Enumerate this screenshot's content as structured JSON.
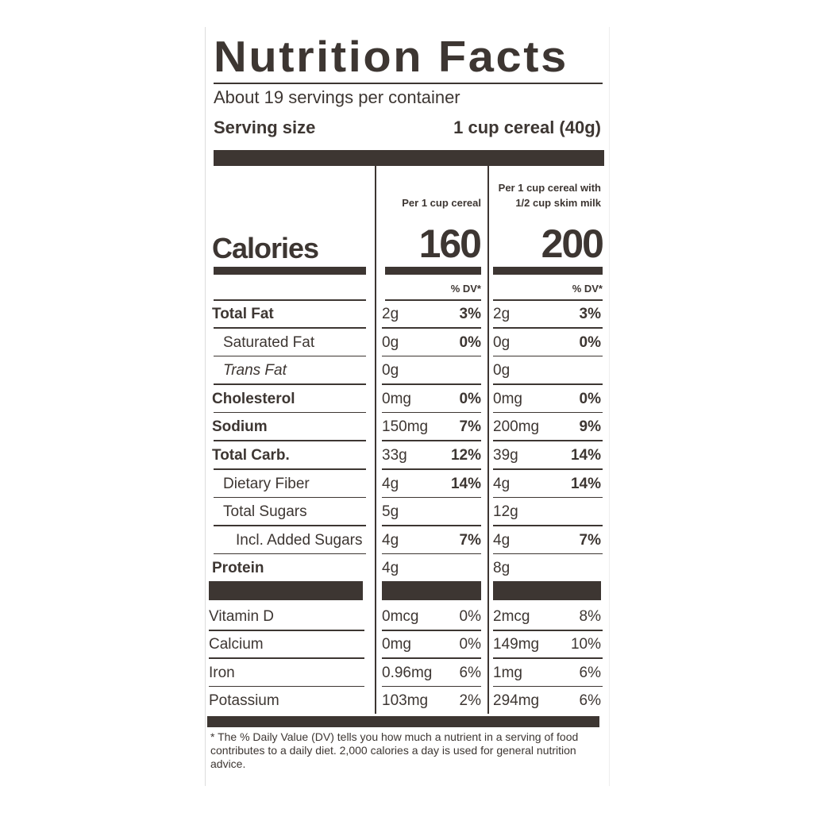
{
  "title": "Nutrition Facts",
  "servings": "About 19 servings per container",
  "serving_size": {
    "label": "Serving size",
    "value": "1 cup cereal (40g)"
  },
  "columns": [
    {
      "header": "Per 1 cup cereal",
      "calories": "160"
    },
    {
      "header": "Per 1 cup cereal with 1/2 cup skim milk",
      "calories": "200"
    }
  ],
  "calories_label": "Calories",
  "dv_header": "% DV*",
  "nutrients": [
    {
      "name": "Total Fat",
      "style": "bold",
      "c1": [
        "2g",
        "3%"
      ],
      "c2": [
        "2g",
        "3%"
      ]
    },
    {
      "name": "Saturated Fat",
      "style": "indent",
      "c1": [
        "0g",
        "0%"
      ],
      "c2": [
        "0g",
        "0%"
      ]
    },
    {
      "name": "Trans Fat",
      "style": "indent-italic",
      "c1": [
        "0g",
        ""
      ],
      "c2": [
        "0g",
        ""
      ]
    },
    {
      "name": "Cholesterol",
      "style": "bold",
      "c1": [
        "0mg",
        "0%"
      ],
      "c2": [
        "0mg",
        "0%"
      ]
    },
    {
      "name": "Sodium",
      "style": "bold",
      "c1": [
        "150mg",
        "7%"
      ],
      "c2": [
        "200mg",
        "9%"
      ]
    },
    {
      "name": "Total Carb.",
      "style": "bold",
      "c1": [
        "33g",
        "12%"
      ],
      "c2": [
        "39g",
        "14%"
      ]
    },
    {
      "name": "Dietary Fiber",
      "style": "indent",
      "c1": [
        "4g",
        "14%"
      ],
      "c2": [
        "4g",
        "14%"
      ]
    },
    {
      "name": "Total Sugars",
      "style": "indent",
      "c1": [
        "5g",
        ""
      ],
      "c2": [
        "12g",
        ""
      ]
    },
    {
      "name": "Incl. Added Sugars",
      "style": "indent2",
      "c1": [
        "4g",
        "7%"
      ],
      "c2": [
        "4g",
        "7%"
      ]
    },
    {
      "name": "Protein",
      "style": "bold",
      "c1": [
        "4g",
        ""
      ],
      "c2": [
        "8g",
        ""
      ]
    }
  ],
  "vitamins": [
    {
      "name": "Vitamin D",
      "c1": [
        "0mcg",
        "0%"
      ],
      "c2": [
        "2mcg",
        "8%"
      ]
    },
    {
      "name": "Calcium",
      "c1": [
        "0mg",
        "0%"
      ],
      "c2": [
        "149mg",
        "10%"
      ]
    },
    {
      "name": "Iron",
      "c1": [
        "0.96mg",
        "6%"
      ],
      "c2": [
        "1mg",
        "6%"
      ]
    },
    {
      "name": "Potassium",
      "c1": [
        "103mg",
        "2%"
      ],
      "c2": [
        "294mg",
        "6%"
      ]
    }
  ],
  "footnote": "* The % Daily Value (DV) tells you how much a nutrient in a serving of food contributes to a daily diet. 2,000 calories a day is used for general nutrition advice.",
  "colors": {
    "ink": "#3d3632",
    "background": "#ffffff"
  }
}
